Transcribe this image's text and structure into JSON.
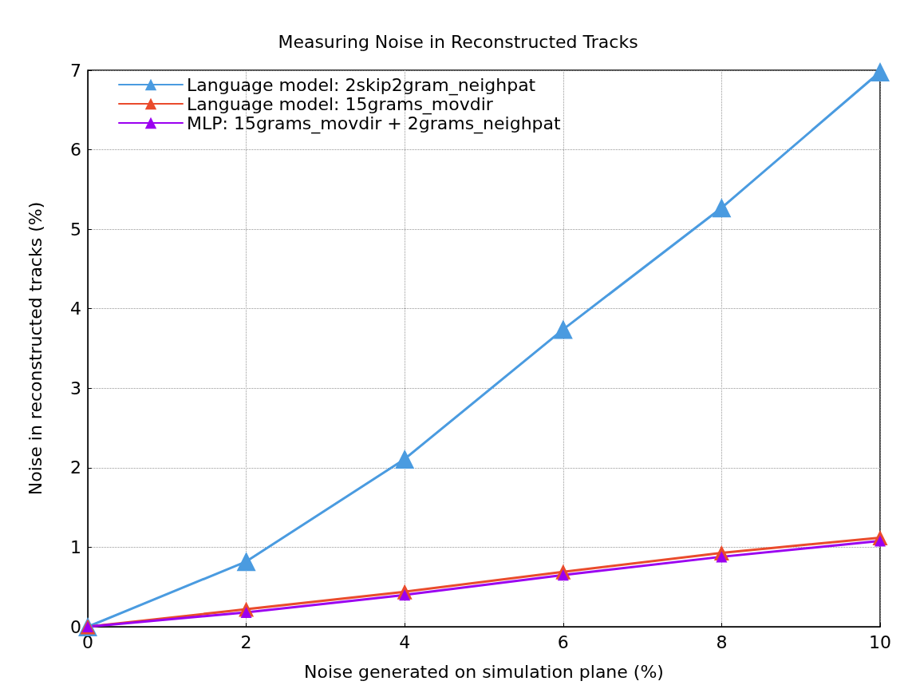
{
  "chart_data": {
    "type": "line",
    "title": "Measuring Noise in Reconstructed Tracks",
    "xlabel": "Noise generated on simulation plane (%)",
    "ylabel": "Noise in reconstructed tracks (%)",
    "x": [
      0,
      2,
      4,
      6,
      8,
      10
    ],
    "series": [
      {
        "name": "Language model: 2skip2gram_neighpat",
        "color": "#4a9be0",
        "values": [
          0,
          0.82,
          2.11,
          3.74,
          5.27,
          6.98
        ]
      },
      {
        "name": "Language model: 15grams_movdir",
        "color": "#ea4b2c",
        "values": [
          0,
          0.22,
          0.44,
          0.69,
          0.93,
          1.12
        ]
      },
      {
        "name": "MLP: 15grams_movdir + 2grams_neighpat",
        "color": "#9b00f0",
        "values": [
          0,
          0.18,
          0.4,
          0.65,
          0.88,
          1.08
        ]
      }
    ],
    "xlim": [
      0,
      10
    ],
    "xticks": [
      0,
      2,
      4,
      6,
      8,
      10
    ],
    "ylim": [
      0,
      7
    ],
    "yticks": [
      0,
      1,
      2,
      3,
      4,
      5,
      6,
      7
    ],
    "grid": true,
    "legend": "top left",
    "marker": "triangle",
    "line_style": "solid"
  }
}
